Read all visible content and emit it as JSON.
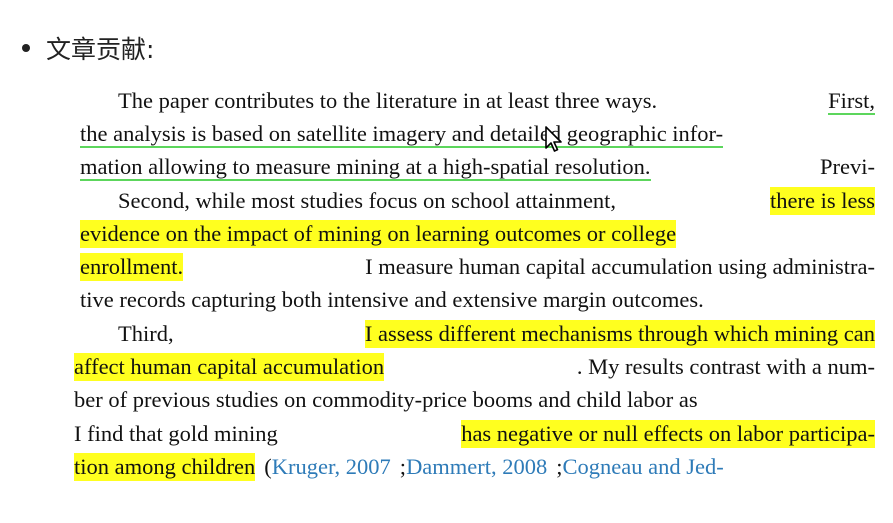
{
  "heading": {
    "bullet_text": "文章贡献:"
  },
  "paragraphs": [
    {
      "lines": [
        [
          {
            "t": "The paper contributes to the literature in at least three ways."
          },
          {
            "t": "First,",
            "ul": true
          }
        ],
        [
          {
            "t": "the analysis is based on satellite imagery and detailed geographic infor-",
            "ul": true
          }
        ],
        [
          {
            "t": "mation allowing to measure mining at a high-spatial resolution.",
            "ul": true
          },
          {
            "t": "Previ-"
          }
        ]
      ]
    },
    {
      "lines": [
        [
          {
            "t": "Second, while most studies focus on school attainment,"
          },
          {
            "t": "there is less",
            "hl": true
          }
        ],
        [
          {
            "t": "evidence on the impact of mining on learning outcomes or college",
            "hl": true
          }
        ],
        [
          {
            "t": "enrollment.",
            "hl": true
          },
          {
            "t": "I measure human capital accumulation using administra-"
          }
        ],
        [
          {
            "t": "tive records capturing both intensive and extensive margin outcomes."
          }
        ]
      ]
    },
    {
      "lines": [
        [
          {
            "t": "Third,"
          },
          {
            "t": "I assess different mechanisms through which mining can",
            "hl": true
          }
        ],
        [
          {
            "t": "affect human capital accumulation",
            "hl": true
          },
          {
            "t": ". My results contrast with a num-"
          }
        ],
        [
          {
            "t": "ber of previous studies on commodity-price booms and child labor as"
          }
        ],
        [
          {
            "t": "I find that gold mining"
          },
          {
            "t": "has negative or null effects on labor participa-",
            "hl": true
          }
        ],
        [
          {
            "t": "tion among children",
            "hl": true
          },
          {
            "t": "("
          },
          {
            "t": "Kruger, 2007",
            "cite": true
          },
          {
            "t": ";"
          },
          {
            "t": "Dammert, 2008",
            "cite": true
          },
          {
            "t": ";"
          },
          {
            "t": "Cogneau and Jed-",
            "cite": true
          }
        ]
      ]
    }
  ]
}
